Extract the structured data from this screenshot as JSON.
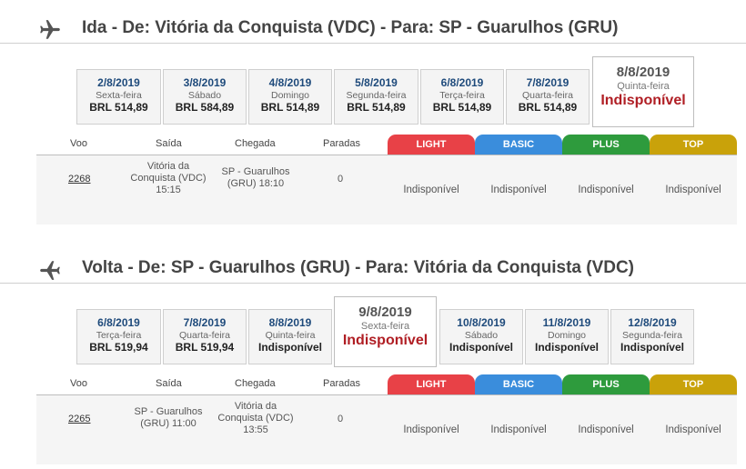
{
  "outbound": {
    "icon": "airplane-takeoff-icon",
    "title": "Ida - De: Vitória da Conquista (VDC) - Para: SP - Guarulhos (GRU)",
    "dates": [
      {
        "date": "2/8/2019",
        "weekday": "Sexta-feira",
        "price": "BRL 514,89",
        "selected": false
      },
      {
        "date": "3/8/2019",
        "weekday": "Sábado",
        "price": "BRL 584,89",
        "selected": false
      },
      {
        "date": "4/8/2019",
        "weekday": "Domingo",
        "price": "BRL 514,89",
        "selected": false
      },
      {
        "date": "5/8/2019",
        "weekday": "Segunda-feira",
        "price": "BRL 514,89",
        "selected": false
      },
      {
        "date": "6/8/2019",
        "weekday": "Terça-feira",
        "price": "BRL 514,89",
        "selected": false
      },
      {
        "date": "7/8/2019",
        "weekday": "Quarta-feira",
        "price": "BRL 514,89",
        "selected": false
      },
      {
        "date": "8/8/2019",
        "weekday": "Quinta-feira",
        "price": "Indisponível",
        "selected": true
      }
    ],
    "columns": {
      "flight": "Voo",
      "departure": "Saída",
      "arrival": "Chegada",
      "stops": "Paradas"
    },
    "fares": {
      "light": "LIGHT",
      "basic": "BASIC",
      "plus": "PLUS",
      "top": "TOP"
    },
    "flight": {
      "number": "2268",
      "departure_l1": "Vitória da",
      "departure_l2": "Conquista (VDC)",
      "departure_l3": "15:15",
      "arrival_l1": "SP - Guarulhos",
      "arrival_l2": "(GRU) 18:10",
      "arrival_l3": "",
      "stops": "0",
      "light": "Indisponível",
      "basic": "Indisponível",
      "plus": "Indisponível",
      "top": "Indisponível"
    }
  },
  "return": {
    "icon": "airplane-landing-icon",
    "title": "Volta - De: SP - Guarulhos (GRU) - Para: Vitória da Conquista (VDC)",
    "dates": [
      {
        "date": "6/8/2019",
        "weekday": "Terça-feira",
        "price": "BRL 519,94",
        "selected": false
      },
      {
        "date": "7/8/2019",
        "weekday": "Quarta-feira",
        "price": "BRL 519,94",
        "selected": false
      },
      {
        "date": "8/8/2019",
        "weekday": "Quinta-feira",
        "price": "Indisponível",
        "selected": false
      },
      {
        "date": "9/8/2019",
        "weekday": "Sexta-feira",
        "price": "Indisponível",
        "selected": true
      },
      {
        "date": "10/8/2019",
        "weekday": "Sábado",
        "price": "Indisponível",
        "selected": false
      },
      {
        "date": "11/8/2019",
        "weekday": "Domingo",
        "price": "Indisponível",
        "selected": false
      },
      {
        "date": "12/8/2019",
        "weekday": "Segunda-feira",
        "price": "Indisponível",
        "selected": false
      }
    ],
    "columns": {
      "flight": "Voo",
      "departure": "Saída",
      "arrival": "Chegada",
      "stops": "Paradas"
    },
    "fares": {
      "light": "LIGHT",
      "basic": "BASIC",
      "plus": "PLUS",
      "top": "TOP"
    },
    "flight": {
      "number": "2265",
      "departure_l1": "SP - Guarulhos",
      "departure_l2": "(GRU) 11:00",
      "departure_l3": "",
      "arrival_l1": "Vitória da",
      "arrival_l2": "Conquista (VDC)",
      "arrival_l3": "13:55",
      "stops": "0",
      "light": "Indisponível",
      "basic": "Indisponível",
      "plus": "Indisponível",
      "top": "Indisponível"
    }
  }
}
